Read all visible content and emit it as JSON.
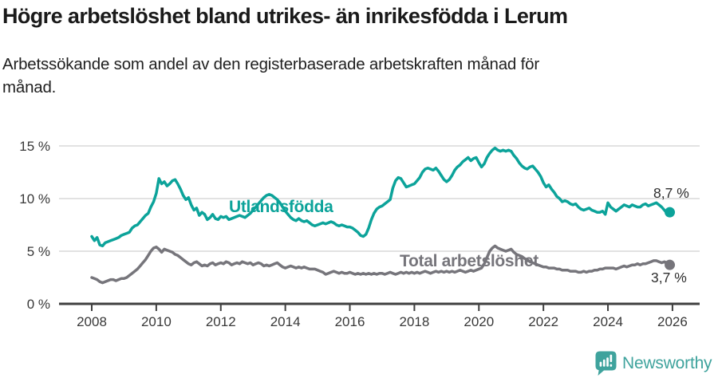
{
  "title": "Högre arbetslöshet bland utrikes- än inrikesfödda i Lerum",
  "subtitle_lines": [
    "Arbetssökande som andel av den registerbaserade arbetskraften månad för",
    "månad."
  ],
  "footer": {
    "brand": "Newsworthy"
  },
  "colors": {
    "background": "#ffffff",
    "title_text": "#1a1a1a",
    "subtitle_text": "#1f1f1f",
    "gridline": "#d9d9d9",
    "axis": "#3f3f3f",
    "tick_label": "#383838",
    "value_label": "#2d2d2d",
    "series_utlandsfodda": "#0ca39a",
    "series_total": "#76757b",
    "logo_teal": "#3fa39d"
  },
  "chart_data": {
    "type": "line",
    "title": "Högre arbetslöshet bland utrikes- än inrikesfödda i Lerum",
    "subtitle": "Arbetssökande som andel av den registerbaserade arbetskraften månad för månad.",
    "unit": "%",
    "x_start_year": 2008,
    "x_step_months": 1,
    "xlim": [
      2007.0,
      2026.8
    ],
    "ylim": [
      0,
      15.7
    ],
    "grid": "horizontal",
    "x_ticks": [
      {
        "v": 2008,
        "label": "2008"
      },
      {
        "v": 2010,
        "label": "2010"
      },
      {
        "v": 2012,
        "label": "2012"
      },
      {
        "v": 2014,
        "label": "2014"
      },
      {
        "v": 2016,
        "label": "2016"
      },
      {
        "v": 2018,
        "label": "2018"
      },
      {
        "v": 2020,
        "label": "2020"
      },
      {
        "v": 2022,
        "label": "2022"
      },
      {
        "v": 2024,
        "label": "2024"
      },
      {
        "v": 2026,
        "label": "2026"
      }
    ],
    "y_ticks": [
      {
        "v": 0,
        "label": "0 %"
      },
      {
        "v": 5,
        "label": "5 %"
      },
      {
        "v": 10,
        "label": "10 %"
      },
      {
        "v": 15,
        "label": "15 %"
      }
    ],
    "legend_position": "inline-labels",
    "series": [
      {
        "name": "Utlandsfödda",
        "color": "#0ca39a",
        "end_label": "8,7 %",
        "end_value": 8.7,
        "values": [
          6.4,
          6.0,
          6.3,
          5.6,
          5.5,
          5.8,
          5.9,
          6.0,
          6.1,
          6.2,
          6.3,
          6.5,
          6.6,
          6.7,
          6.8,
          7.2,
          7.4,
          7.5,
          7.8,
          8.1,
          8.4,
          8.6,
          9.2,
          9.7,
          10.5,
          11.9,
          11.4,
          11.6,
          11.2,
          11.4,
          11.7,
          11.8,
          11.4,
          10.9,
          10.3,
          9.9,
          10.1,
          9.4,
          8.9,
          9.1,
          8.4,
          8.7,
          8.5,
          8.0,
          8.2,
          8.5,
          8.1,
          8.0,
          8.3,
          8.2,
          8.3,
          8.0,
          8.1,
          8.2,
          8.3,
          8.4,
          8.3,
          8.2,
          8.4,
          8.6,
          8.9,
          9.2,
          9.5,
          9.8,
          10.1,
          10.3,
          10.4,
          10.3,
          10.1,
          9.9,
          9.6,
          9.2,
          8.8,
          8.5,
          8.2,
          8.0,
          7.9,
          8.1,
          7.9,
          7.8,
          7.9,
          7.7,
          7.5,
          7.4,
          7.5,
          7.6,
          7.7,
          7.6,
          7.7,
          7.8,
          7.7,
          7.5,
          7.4,
          7.5,
          7.4,
          7.3,
          7.3,
          7.2,
          7.0,
          6.8,
          6.5,
          6.4,
          6.6,
          7.2,
          8.0,
          8.6,
          9.0,
          9.2,
          9.3,
          9.5,
          9.7,
          9.9,
          11.0,
          11.7,
          12.0,
          11.9,
          11.5,
          11.1,
          11.2,
          11.3,
          11.4,
          11.7,
          12.0,
          12.5,
          12.8,
          12.9,
          12.8,
          12.7,
          12.9,
          12.6,
          12.2,
          11.8,
          11.6,
          11.8,
          12.2,
          12.7,
          13.0,
          13.2,
          13.5,
          13.7,
          13.9,
          13.6,
          13.8,
          13.9,
          13.4,
          13.0,
          13.3,
          13.9,
          14.3,
          14.6,
          14.8,
          14.6,
          14.5,
          14.6,
          14.5,
          14.6,
          14.5,
          14.1,
          13.8,
          13.4,
          13.1,
          12.9,
          12.8,
          13.0,
          13.1,
          12.8,
          12.5,
          12.1,
          11.5,
          11.1,
          11.3,
          10.9,
          10.6,
          10.2,
          10.0,
          9.7,
          9.8,
          9.7,
          9.5,
          9.4,
          9.5,
          9.2,
          9.0,
          8.9,
          9.0,
          9.1,
          8.9,
          8.8,
          8.7,
          8.7,
          8.8,
          8.5,
          9.6,
          9.2,
          9.0,
          8.8,
          9.0,
          9.2,
          9.4,
          9.3,
          9.2,
          9.4,
          9.3,
          9.2,
          9.2,
          9.4,
          9.5,
          9.3,
          9.4,
          9.5,
          9.6,
          9.4,
          9.2,
          8.9,
          8.6,
          8.7
        ]
      },
      {
        "name": "Total arbetslöshet",
        "color": "#76757b",
        "end_label": "3,7 %",
        "end_value": 3.7,
        "values": [
          2.5,
          2.4,
          2.3,
          2.1,
          2.0,
          2.1,
          2.2,
          2.3,
          2.3,
          2.2,
          2.3,
          2.4,
          2.4,
          2.5,
          2.7,
          2.9,
          3.1,
          3.3,
          3.6,
          3.9,
          4.2,
          4.6,
          5.0,
          5.3,
          5.4,
          5.2,
          4.9,
          5.2,
          5.1,
          5.0,
          4.9,
          4.7,
          4.6,
          4.4,
          4.2,
          4.0,
          3.8,
          3.7,
          3.9,
          4.0,
          3.8,
          3.6,
          3.7,
          3.6,
          3.8,
          3.9,
          3.7,
          3.8,
          3.9,
          3.8,
          4.0,
          3.9,
          3.7,
          3.8,
          3.9,
          3.8,
          4.0,
          3.9,
          3.8,
          3.9,
          3.7,
          3.8,
          3.9,
          3.8,
          3.6,
          3.7,
          3.6,
          3.7,
          3.8,
          3.9,
          3.7,
          3.5,
          3.4,
          3.5,
          3.6,
          3.5,
          3.4,
          3.5,
          3.4,
          3.5,
          3.4,
          3.3,
          3.3,
          3.3,
          3.2,
          3.1,
          3.0,
          2.8,
          2.9,
          3.0,
          3.1,
          3.0,
          2.9,
          3.0,
          2.9,
          2.9,
          3.0,
          2.9,
          2.8,
          2.9,
          2.8,
          2.9,
          2.8,
          2.9,
          2.8,
          2.9,
          2.8,
          2.9,
          2.9,
          2.8,
          2.9,
          3.0,
          2.9,
          2.8,
          2.9,
          3.0,
          2.9,
          3.0,
          2.9,
          3.0,
          2.9,
          3.0,
          2.9,
          3.0,
          3.1,
          3.0,
          2.9,
          3.0,
          3.1,
          3.0,
          3.1,
          3.0,
          3.1,
          3.0,
          3.1,
          3.0,
          3.1,
          3.2,
          3.1,
          3.0,
          3.1,
          3.2,
          3.1,
          3.2,
          3.3,
          3.4,
          3.8,
          4.4,
          5.0,
          5.3,
          5.5,
          5.3,
          5.2,
          5.1,
          5.0,
          5.1,
          5.2,
          4.9,
          4.7,
          4.6,
          4.5,
          4.3,
          4.2,
          4.0,
          3.9,
          3.8,
          3.7,
          3.6,
          3.5,
          3.5,
          3.4,
          3.4,
          3.4,
          3.3,
          3.3,
          3.2,
          3.2,
          3.2,
          3.1,
          3.1,
          3.1,
          3.0,
          3.0,
          3.1,
          3.0,
          3.1,
          3.1,
          3.2,
          3.2,
          3.3,
          3.3,
          3.4,
          3.4,
          3.4,
          3.4,
          3.3,
          3.4,
          3.5,
          3.6,
          3.5,
          3.6,
          3.7,
          3.7,
          3.8,
          3.7,
          3.8,
          3.8,
          3.9,
          4.0,
          4.1,
          4.1,
          4.0,
          3.9,
          4.0,
          3.9,
          3.7
        ]
      }
    ]
  }
}
